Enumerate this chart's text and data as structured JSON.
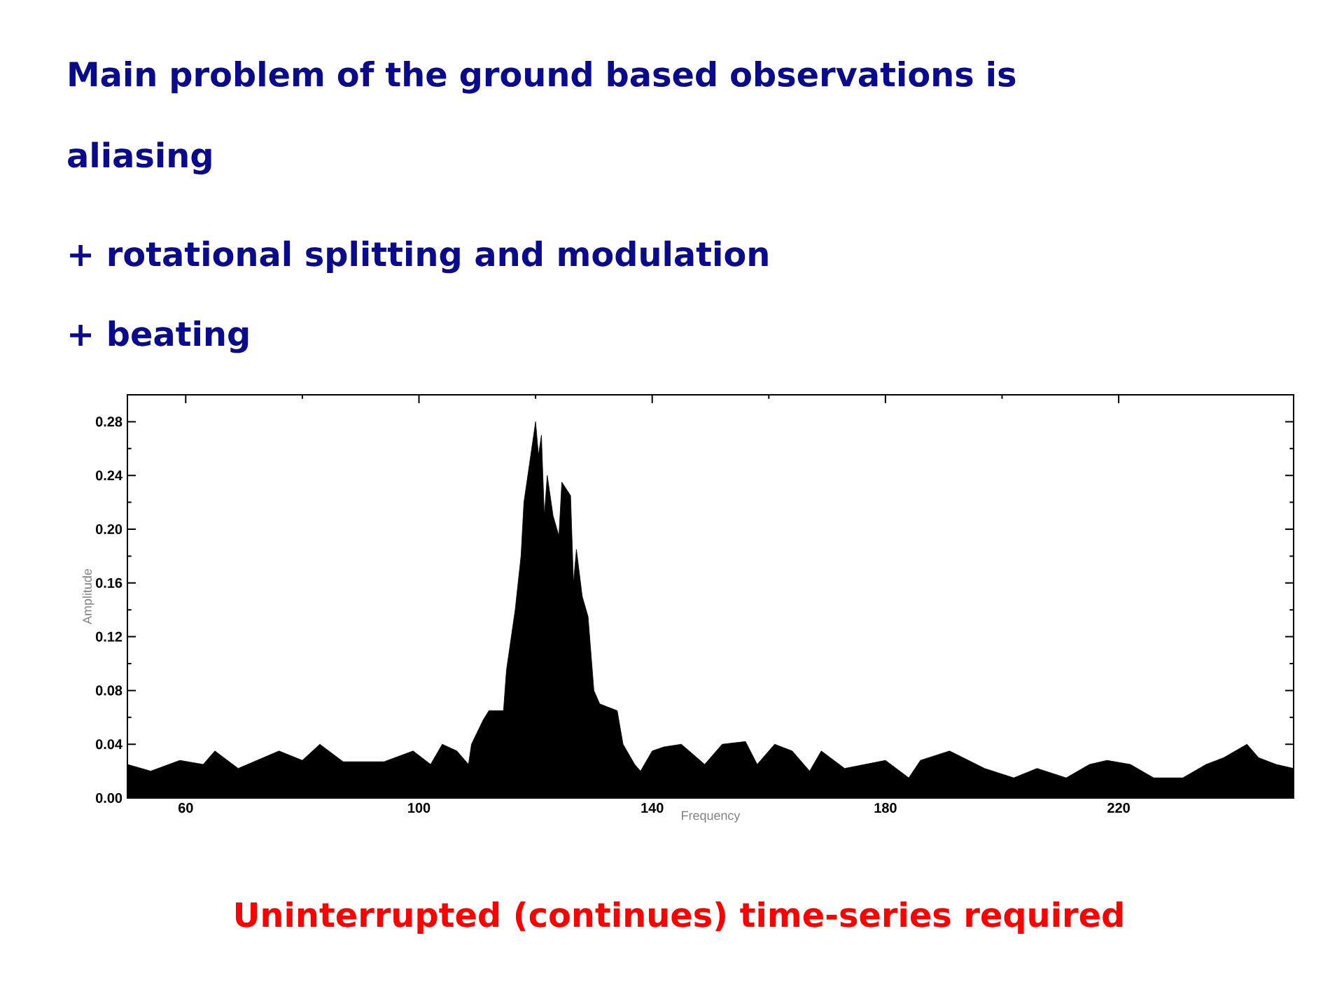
{
  "chart_data": {
    "type": "area",
    "title": "Main problem of the ground based observations is aliasing",
    "annotations": [
      "+ rotational splitting and modulation",
      "+ beating",
      "Uninterrupted (continues) time-series required"
    ],
    "xlabel": "Frequency",
    "ylabel": "Amplitude",
    "color": "#000000",
    "x": [
      50,
      54,
      59,
      63,
      65,
      69,
      76,
      80,
      83,
      87,
      94,
      99,
      102,
      104,
      106.5,
      108.5,
      109,
      111,
      112,
      114.5,
      115,
      116.5,
      117.5,
      118,
      119,
      120,
      120.5,
      121,
      121.5,
      122,
      123,
      124,
      124.5,
      126,
      126.5,
      127,
      128,
      129,
      130,
      131,
      134,
      135,
      137,
      138,
      140,
      142,
      145,
      149,
      152,
      156,
      158,
      161,
      164,
      167,
      169,
      173,
      180,
      184,
      186,
      191,
      197,
      202,
      206,
      211,
      215,
      218,
      222,
      226,
      231,
      235,
      238,
      242,
      244,
      247,
      250
    ],
    "values": [
      0.025,
      0.02,
      0.028,
      0.025,
      0.035,
      0.022,
      0.035,
      0.028,
      0.04,
      0.027,
      0.027,
      0.035,
      0.025,
      0.04,
      0.035,
      0.025,
      0.04,
      0.058,
      0.065,
      0.065,
      0.095,
      0.14,
      0.18,
      0.22,
      0.25,
      0.28,
      0.255,
      0.27,
      0.21,
      0.24,
      0.21,
      0.195,
      0.235,
      0.225,
      0.16,
      0.185,
      0.15,
      0.135,
      0.08,
      0.07,
      0.065,
      0.04,
      0.025,
      0.02,
      0.035,
      0.038,
      0.04,
      0.025,
      0.04,
      0.042,
      0.025,
      0.04,
      0.035,
      0.02,
      0.035,
      0.022,
      0.028,
      0.015,
      0.028,
      0.035,
      0.022,
      0.015,
      0.022,
      0.015,
      0.025,
      0.028,
      0.025,
      0.015,
      0.015,
      0.025,
      0.03,
      0.04,
      0.03,
      0.025,
      0.022
    ],
    "xlim": [
      50,
      250
    ],
    "ylim": [
      0,
      0.3
    ],
    "xticks": [
      60,
      100,
      140,
      180,
      220
    ],
    "yticks": [
      {
        "value": 0,
        "label": "0.00"
      },
      {
        "value": 0.04,
        "label": "0.04"
      },
      {
        "value": 0.08,
        "label": "0.08"
      },
      {
        "value": 0.12,
        "label": "0.12"
      },
      {
        "value": 0.16,
        "label": "0.16"
      },
      {
        "value": 0.2,
        "label": "0.20"
      },
      {
        "value": 0.24,
        "label": "0.24"
      },
      {
        "value": 0.28,
        "label": "0.28"
      }
    ]
  }
}
